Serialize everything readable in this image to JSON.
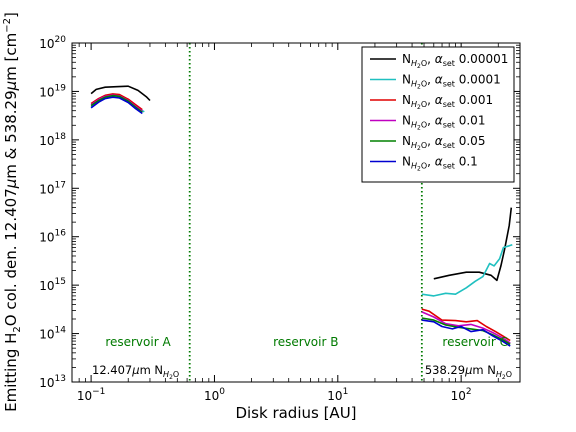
{
  "chart_data": {
    "type": "line",
    "xlabel": "Disk radius [AU]",
    "ylabel_parts": [
      "Emitting H",
      "2",
      "O col. den. 12.407",
      "μ",
      "m & 538.29",
      "μ",
      "m [cm",
      "−2",
      "]"
    ],
    "xscale": "log",
    "yscale": "log",
    "xlim": [
      0.07,
      300
    ],
    "ylim": [
      10000000000000.0,
      1e+20
    ],
    "x_ticks": [
      {
        "v": 0.1,
        "base": "10",
        "exp": "−1"
      },
      {
        "v": 1,
        "base": "10",
        "exp": "0"
      },
      {
        "v": 10,
        "base": "10",
        "exp": "1"
      },
      {
        "v": 100,
        "base": "10",
        "exp": "2"
      }
    ],
    "y_ticks": [
      {
        "v": 10000000000000.0,
        "base": "10",
        "exp": "13"
      },
      {
        "v": 100000000000000.0,
        "base": "10",
        "exp": "14"
      },
      {
        "v": 1000000000000000.0,
        "base": "10",
        "exp": "15"
      },
      {
        "v": 1e+16,
        "base": "10",
        "exp": "16"
      },
      {
        "v": 1e+17,
        "base": "10",
        "exp": "17"
      },
      {
        "v": 1e+18,
        "base": "10",
        "exp": "18"
      },
      {
        "v": 1e+19,
        "base": "10",
        "exp": "19"
      },
      {
        "v": 1e+20,
        "base": "10",
        "exp": "20"
      }
    ],
    "vlines": [
      0.63,
      48
    ],
    "regions": [
      {
        "label": "reservoir A",
        "x": 0.24,
        "y": 55000000000000.0
      },
      {
        "label": "reservoir B",
        "x": 5.5,
        "y": 55000000000000.0
      },
      {
        "label": "reservoir C",
        "x": 130,
        "y": 55000000000000.0
      }
    ],
    "corner_labels": [
      {
        "main": "12.407",
        "mu": "μ",
        "m": "m N",
        "sub": "H",
        "sub2": "2",
        "tail": "O",
        "anchor": "left"
      },
      {
        "main": "538.29",
        "mu": "μ",
        "m": "m N",
        "sub": "H",
        "sub2": "2",
        "tail": "O",
        "anchor": "right"
      }
    ],
    "legend_position": "top-right",
    "series": [
      {
        "name": "0.00001",
        "color": "#000000",
        "segments": [
          [
            [
              0.1,
              9e+18
            ],
            [
              0.11,
              1.1e+19
            ],
            [
              0.13,
              1.22e+19
            ],
            [
              0.16,
              1.25e+19
            ],
            [
              0.2,
              1.28e+19
            ],
            [
              0.24,
              1.05e+19
            ],
            [
              0.28,
              7.8e+18
            ],
            [
              0.3,
              6.5e+18
            ]
          ],
          [
            [
              60,
              1350000000000000.0
            ],
            [
              80,
              1600000000000000.0
            ],
            [
              110,
              1850000000000000.0
            ],
            [
              140,
              1850000000000000.0
            ],
            [
              175,
              1600000000000000.0
            ],
            [
              195,
              1250000000000000.0
            ],
            [
              210,
              2500000000000000.0
            ],
            [
              225,
              5500000000000000.0
            ],
            [
              245,
              1.7e+16
            ],
            [
              255,
              4e+16
            ]
          ]
        ]
      },
      {
        "name": "0.0001",
        "color": "#20c0c0",
        "segments": [
          [
            [
              0.1,
              4.8e+18
            ],
            [
              0.115,
              6.2e+18
            ],
            [
              0.13,
              7.6e+18
            ],
            [
              0.15,
              8e+18
            ],
            [
              0.17,
              7.6e+18
            ],
            [
              0.2,
              6e+18
            ],
            [
              0.24,
              4.5e+18
            ],
            [
              0.27,
              3.8e+18
            ]
          ],
          [
            [
              48,
              650000000000000.0
            ],
            [
              60,
              600000000000000.0
            ],
            [
              75,
              680000000000000.0
            ],
            [
              90,
              650000000000000.0
            ],
            [
              110,
              880000000000000.0
            ],
            [
              130,
              1200000000000000.0
            ],
            [
              150,
              1500000000000000.0
            ],
            [
              170,
              2800000000000000.0
            ],
            [
              185,
              2500000000000000.0
            ],
            [
              205,
              3500000000000000.0
            ],
            [
              220,
              6000000000000000.0
            ],
            [
              245,
              6500000000000000.0
            ],
            [
              260,
              6800000000000000.0
            ]
          ]
        ]
      },
      {
        "name": "0.001",
        "color": "#e00000",
        "segments": [
          [
            [
              0.1,
              5.6e+18
            ],
            [
              0.115,
              7.1e+18
            ],
            [
              0.13,
              8.3e+18
            ],
            [
              0.15,
              8.9e+18
            ],
            [
              0.17,
              8.6e+18
            ],
            [
              0.2,
              6.9e+18
            ],
            [
              0.23,
              5.3e+18
            ],
            [
              0.26,
              4.2e+18
            ]
          ],
          [
            [
              48,
              320000000000000.0
            ],
            [
              55,
              290000000000000.0
            ],
            [
              70,
              190000000000000.0
            ],
            [
              90,
              185000000000000.0
            ],
            [
              110,
              175000000000000.0
            ],
            [
              135,
              185000000000000.0
            ],
            [
              160,
              140000000000000.0
            ],
            [
              190,
              110000000000000.0
            ],
            [
              220,
              88000000000000.0
            ],
            [
              250,
              72000000000000.0
            ]
          ]
        ]
      },
      {
        "name": "0.01",
        "color": "#c000c0",
        "segments": [
          [
            [
              0.1,
              5.3e+18
            ],
            [
              0.115,
              6.8e+18
            ],
            [
              0.13,
              7.9e+18
            ],
            [
              0.15,
              8.4e+18
            ],
            [
              0.17,
              8.1e+18
            ],
            [
              0.2,
              6.5e+18
            ],
            [
              0.23,
              4.9e+18
            ],
            [
              0.26,
              3.9e+18
            ]
          ],
          [
            [
              48,
              280000000000000.0
            ],
            [
              60,
              220000000000000.0
            ],
            [
              75,
              160000000000000.0
            ],
            [
              95,
              145000000000000.0
            ],
            [
              120,
              155000000000000.0
            ],
            [
              150,
              130000000000000.0
            ],
            [
              180,
              105000000000000.0
            ],
            [
              215,
              82000000000000.0
            ],
            [
              250,
              64000000000000.0
            ]
          ]
        ]
      },
      {
        "name": "0.05",
        "color": "#008000",
        "segments": [
          [
            [
              0.1,
              5.1e+18
            ],
            [
              0.115,
              6.5e+18
            ],
            [
              0.13,
              7.6e+18
            ],
            [
              0.15,
              8.2e+18
            ],
            [
              0.17,
              7.9e+18
            ],
            [
              0.2,
              6.3e+18
            ],
            [
              0.23,
              4.7e+18
            ],
            [
              0.26,
              3.7e+18
            ]
          ],
          [
            [
              48,
              210000000000000.0
            ],
            [
              60,
              190000000000000.0
            ],
            [
              75,
              150000000000000.0
            ],
            [
              95,
              135000000000000.0
            ],
            [
              120,
              125000000000000.0
            ],
            [
              150,
              115000000000000.0
            ],
            [
              180,
              95000000000000.0
            ],
            [
              215,
              75000000000000.0
            ],
            [
              250,
              60000000000000.0
            ]
          ]
        ]
      },
      {
        "name": "0.1",
        "color": "#0000d0",
        "segments": [
          [
            [
              0.1,
              4.6e+18
            ],
            [
              0.115,
              6e+18
            ],
            [
              0.13,
              7.1e+18
            ],
            [
              0.15,
              7.6e+18
            ],
            [
              0.17,
              7.3e+18
            ],
            [
              0.2,
              5.9e+18
            ],
            [
              0.23,
              4.4e+18
            ],
            [
              0.26,
              3.5e+18
            ]
          ],
          [
            [
              48,
              190000000000000.0
            ],
            [
              60,
              175000000000000.0
            ],
            [
              70,
              140000000000000.0
            ],
            [
              85,
              125000000000000.0
            ],
            [
              100,
              140000000000000.0
            ],
            [
              120,
              110000000000000.0
            ],
            [
              150,
              120000000000000.0
            ],
            [
              180,
              90000000000000.0
            ],
            [
              215,
              70000000000000.0
            ],
            [
              250,
              55000000000000.0
            ]
          ]
        ]
      }
    ],
    "legend_prefix": {
      "main": "N",
      "sub": "H",
      "sub2": "2",
      "tail": "O",
      "sep": ", ",
      "alpha": "α",
      "alpha_sub": "set"
    }
  }
}
